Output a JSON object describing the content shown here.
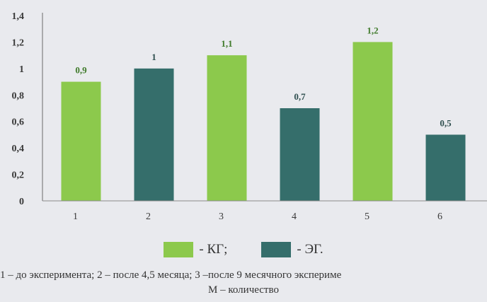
{
  "chart_data": {
    "type": "bar",
    "categories": [
      "1",
      "2",
      "3",
      "4",
      "5",
      "6"
    ],
    "values": [
      0.9,
      1.0,
      1.1,
      0.7,
      1.2,
      0.5
    ],
    "value_labels": [
      "0,9",
      "1",
      "1,1",
      "0,7",
      "1,2",
      "0,5"
    ],
    "series_of_bar": [
      "kg",
      "eg",
      "kg",
      "eg",
      "kg",
      "eg"
    ],
    "yticks": [
      "0",
      "0,2",
      "0,4",
      "0,6",
      "0,8",
      "1",
      "1,2",
      "1,4"
    ],
    "ylim": [
      0,
      1.4
    ],
    "grid": false,
    "legend": [
      {
        "key": "kg",
        "label": "- КГ;",
        "color": "#8cc94c"
      },
      {
        "key": "eg",
        "label": "- ЭГ.",
        "color": "#356e6b"
      }
    ],
    "label_colors": {
      "kg": "#3f7a2a",
      "eg": "#2f4f4f"
    }
  },
  "caption": {
    "line1": "1 – до эксперимента; 2 – после 4,5 месяца; 3 –после 9 месячного экспериме",
    "line2": "М – количество"
  }
}
